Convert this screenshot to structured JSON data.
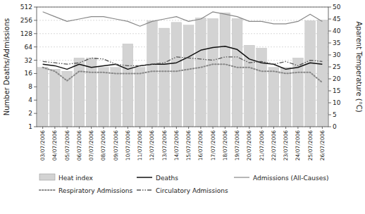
{
  "chart_data": {
    "type": "bar",
    "categories": [
      "03/07/2006",
      "04/07/2006",
      "05/07/2006",
      "06/07/2006",
      "07/07/2006",
      "08/07/2006",
      "09/07/2006",
      "10/07/2006",
      "11/07/2006",
      "12/07/2006",
      "13/07/2006",
      "14/07/2006",
      "15/07/2006",
      "16/07/2006",
      "17/07/2006",
      "18/07/2006",
      "19/07/2006",
      "20/07/2006",
      "21/07/2006",
      "22/07/2006",
      "23/07/2006",
      "24/07/2006",
      "25/07/2006",
      "26/07/2006"
    ],
    "ylabel": "Number Deaths/Admissions",
    "y2label": "Aparent Temperature (°C)",
    "log": "y",
    "ylim": [
      1,
      512
    ],
    "yticks": [
      1,
      2,
      4,
      8,
      16,
      32,
      64,
      128,
      256,
      512
    ],
    "y2lim": [
      0,
      50
    ],
    "y2ticks": [
      0,
      5,
      10,
      15,
      20,
      25,
      30,
      35,
      40,
      45,
      50
    ],
    "grid": true,
    "legend": "bottom",
    "series": [
      {
        "name": "Heat index",
        "type": "bar",
        "color": "#d3d3d3",
        "values": [
          22,
          20,
          18,
          36,
          36,
          22,
          22,
          75,
          22,
          250,
          170,
          230,
          200,
          290,
          280,
          380,
          280,
          70,
          60,
          22,
          22,
          36,
          250,
          260
        ]
      },
      {
        "name": "Deaths",
        "type": "line",
        "color": "#111111",
        "line_style": "solid",
        "values": [
          26,
          24,
          20,
          26,
          22,
          24,
          26,
          20,
          24,
          26,
          26,
          28,
          38,
          54,
          62,
          66,
          56,
          34,
          28,
          26,
          20,
          22,
          28,
          26
        ]
      },
      {
        "name": "Admissions (All-Causes)",
        "type": "line",
        "axis": "y2",
        "color": "#888888",
        "line_style": "solid",
        "values": [
          48,
          46,
          44,
          45,
          46,
          46,
          45,
          44,
          42,
          44,
          45,
          46,
          44,
          45,
          48,
          47,
          46,
          44,
          44,
          43,
          43,
          44,
          47,
          44
        ]
      },
      {
        "name": "Respiratory Admissions",
        "type": "line",
        "color": "#888888",
        "line_style": "dotted",
        "values": [
          22,
          18,
          11,
          18,
          17,
          17,
          16,
          16,
          16,
          18,
          18,
          18,
          20,
          22,
          26,
          26,
          22,
          22,
          18,
          18,
          16,
          17,
          17,
          10
        ]
      },
      {
        "name": "Circulatory Admissions",
        "type": "line",
        "color": "#555555",
        "line_style": "dashdot",
        "values": [
          30,
          28,
          26,
          28,
          36,
          34,
          26,
          24,
          24,
          26,
          28,
          38,
          36,
          34,
          32,
          38,
          38,
          28,
          30,
          26,
          30,
          24,
          32,
          30
        ]
      }
    ]
  }
}
